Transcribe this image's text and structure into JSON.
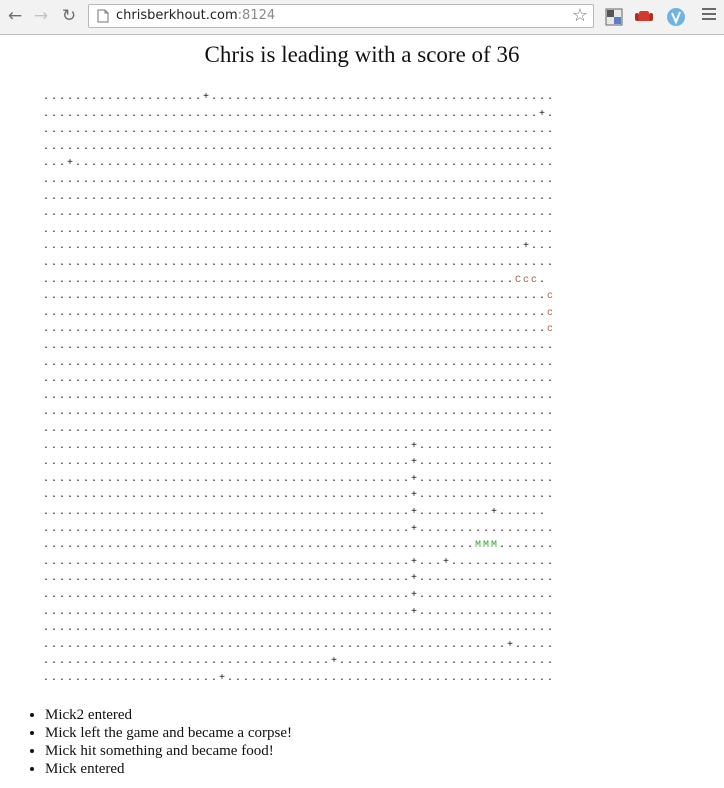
{
  "browser": {
    "url_host": "chrisberkhout.com",
    "url_port": ":8124"
  },
  "page": {
    "headline": "Chris is leading with a score of 36"
  },
  "board": {
    "rows": [
      "....................+...........................................",
      "..............................................................+.",
      "................................................................",
      "................................................................",
      "...+............................................................",
      "................................................................",
      "................................................................",
      "................................................................",
      "................................................................",
      "............................................................+...",
      "................................................................",
      "...........................................................Ccc.",
      "...............................................................c",
      "...............................................................c",
      "...............................................................c",
      "................................................................",
      "................................................................",
      "................................................................",
      "................................................................",
      "................................................................",
      "................................................................",
      "..............................................+.................",
      "..............................................+.................",
      "..............................................+.................",
      "..............................................+.................",
      "..............................................+.........+......",
      "..............................................+.................",
      "......................................................MMM.......",
      "..............................................+...+.............",
      "..............................................+.................",
      "..............................................+.................",
      "..............................................+.................",
      "................................................................",
      "..........................................................+.....",
      "....................................+...........................",
      "......................+........................................."
    ]
  },
  "colors": {
    "snake_c": "#a0674b",
    "snake_m": "#35a835"
  },
  "events": [
    "Mick2 entered",
    "Mick left the game and became a corpse!",
    "Mick hit something and became food!",
    "Mick entered"
  ]
}
